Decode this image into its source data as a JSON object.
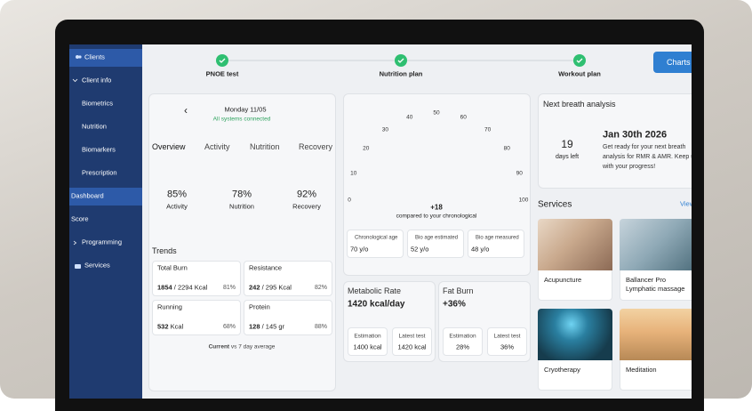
{
  "sidebar": {
    "items": [
      "Clients",
      "Client info",
      "Biometrics",
      "Nutrition",
      "Biomarkers",
      "Prescription",
      "Dashboard",
      "Score",
      "Programming",
      "Services"
    ]
  },
  "steps": [
    "PNOE test",
    "Nutrition plan",
    "Workout plan"
  ],
  "charts_button": "Charts",
  "day": {
    "date": "Monday 11/05",
    "status": "All systems connected"
  },
  "tabs": [
    "Overview",
    "Activity",
    "Nutrition",
    "Recovery"
  ],
  "rings": [
    {
      "name": "Activity",
      "value": 85,
      "label": "85%",
      "color": "#2f8fdb"
    },
    {
      "name": "Nutrition",
      "value": 78,
      "label": "78%",
      "color": "#2fbf71"
    },
    {
      "name": "Recovery",
      "value": 92,
      "label": "92%",
      "color": "#e8b825"
    }
  ],
  "trends": {
    "title": "Trends",
    "cards": [
      {
        "name": "Total Burn",
        "current": "1854",
        "target": "/ 2294 Kcal",
        "percent": 81,
        "percent_label": "81%"
      },
      {
        "name": "Resistance",
        "current": "242",
        "target": "/ 295 Kcal",
        "percent": 82,
        "percent_label": "82%"
      },
      {
        "name": "Running",
        "current": "532",
        "target": "Kcal",
        "percent": 68,
        "percent_label": "68%"
      },
      {
        "name": "Protein",
        "current": "128",
        "target": "/ 145 gr",
        "percent": 88,
        "percent_label": "88%"
      }
    ],
    "footnote": {
      "bold": "Current",
      "rest": "vs 7 day average"
    }
  },
  "gauge": {
    "ticks": [
      0,
      10,
      20,
      30,
      40,
      50,
      60,
      70,
      80,
      90,
      100
    ],
    "delta": "+18",
    "caption": "compared to your chronological",
    "legend": [
      {
        "name": "Chronological age",
        "value": "70 y/o",
        "color": "#e8b825",
        "needle": 35
      },
      {
        "name": "Bio age estimated",
        "value": "52 y/o",
        "color": "#2fbf71",
        "needle": 41
      },
      {
        "name": "Bio age measured",
        "value": "48 y/o",
        "color": "#3a86d8",
        "needle": 24
      }
    ]
  },
  "metabolic_rate": {
    "title": "Metabolic Rate",
    "value": "1420 kcal/day",
    "items": [
      {
        "label": "Estimation",
        "value": "1400 kcal"
      },
      {
        "label": "Latest test",
        "value": "1420 kcal"
      }
    ]
  },
  "fat_burn": {
    "title": "Fat Burn",
    "value": "+36%",
    "items": [
      {
        "label": "Estimation",
        "value": "28%"
      },
      {
        "label": "Latest test",
        "value": "36%"
      }
    ]
  },
  "breath": {
    "title": "Next breath analysis",
    "days": "19",
    "days_label": "days left",
    "date": "Jan 30th 2026",
    "text": "Get ready for your next breath analysis for RMR & AMR. Keep up with your progress!"
  },
  "services": {
    "title": "Services",
    "link": "View",
    "items": [
      "Acupuncture",
      "Ballancer Pro Lymphatic massage",
      "Cryotherapy",
      "Meditation"
    ]
  }
}
